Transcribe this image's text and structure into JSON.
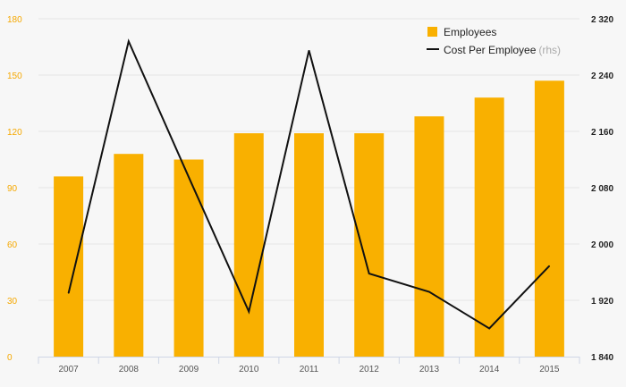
{
  "chart_data": {
    "type": "bar",
    "categories": [
      "2007",
      "2008",
      "2009",
      "2010",
      "2011",
      "2012",
      "2013",
      "2014",
      "2015"
    ],
    "series": [
      {
        "name": "Employees",
        "type": "bar",
        "axis": "left",
        "values": [
          96,
          108,
          105,
          119,
          119,
          119,
          128,
          138,
          147
        ]
      },
      {
        "name": "Cost Per Employee",
        "name_suffix": "(rhs)",
        "type": "line",
        "axis": "right",
        "values": [
          1930,
          2288,
          2095,
          1904,
          2275,
          1958,
          1932,
          1880,
          1969
        ]
      }
    ],
    "ylim_left": [
      0,
      180
    ],
    "yticks_left": [
      "0",
      "30",
      "60",
      "90",
      "120",
      "150",
      "180"
    ],
    "ylim_right": [
      1840,
      2320
    ],
    "yticks_right": [
      "1 840",
      "1 920",
      "2 000",
      "2 080",
      "2 160",
      "2 240",
      "2 320"
    ],
    "legend_position": "top-right",
    "grid": true,
    "colors": {
      "bar": "#f9b000",
      "line": "#111111",
      "grid": "#e4e4e4"
    }
  }
}
